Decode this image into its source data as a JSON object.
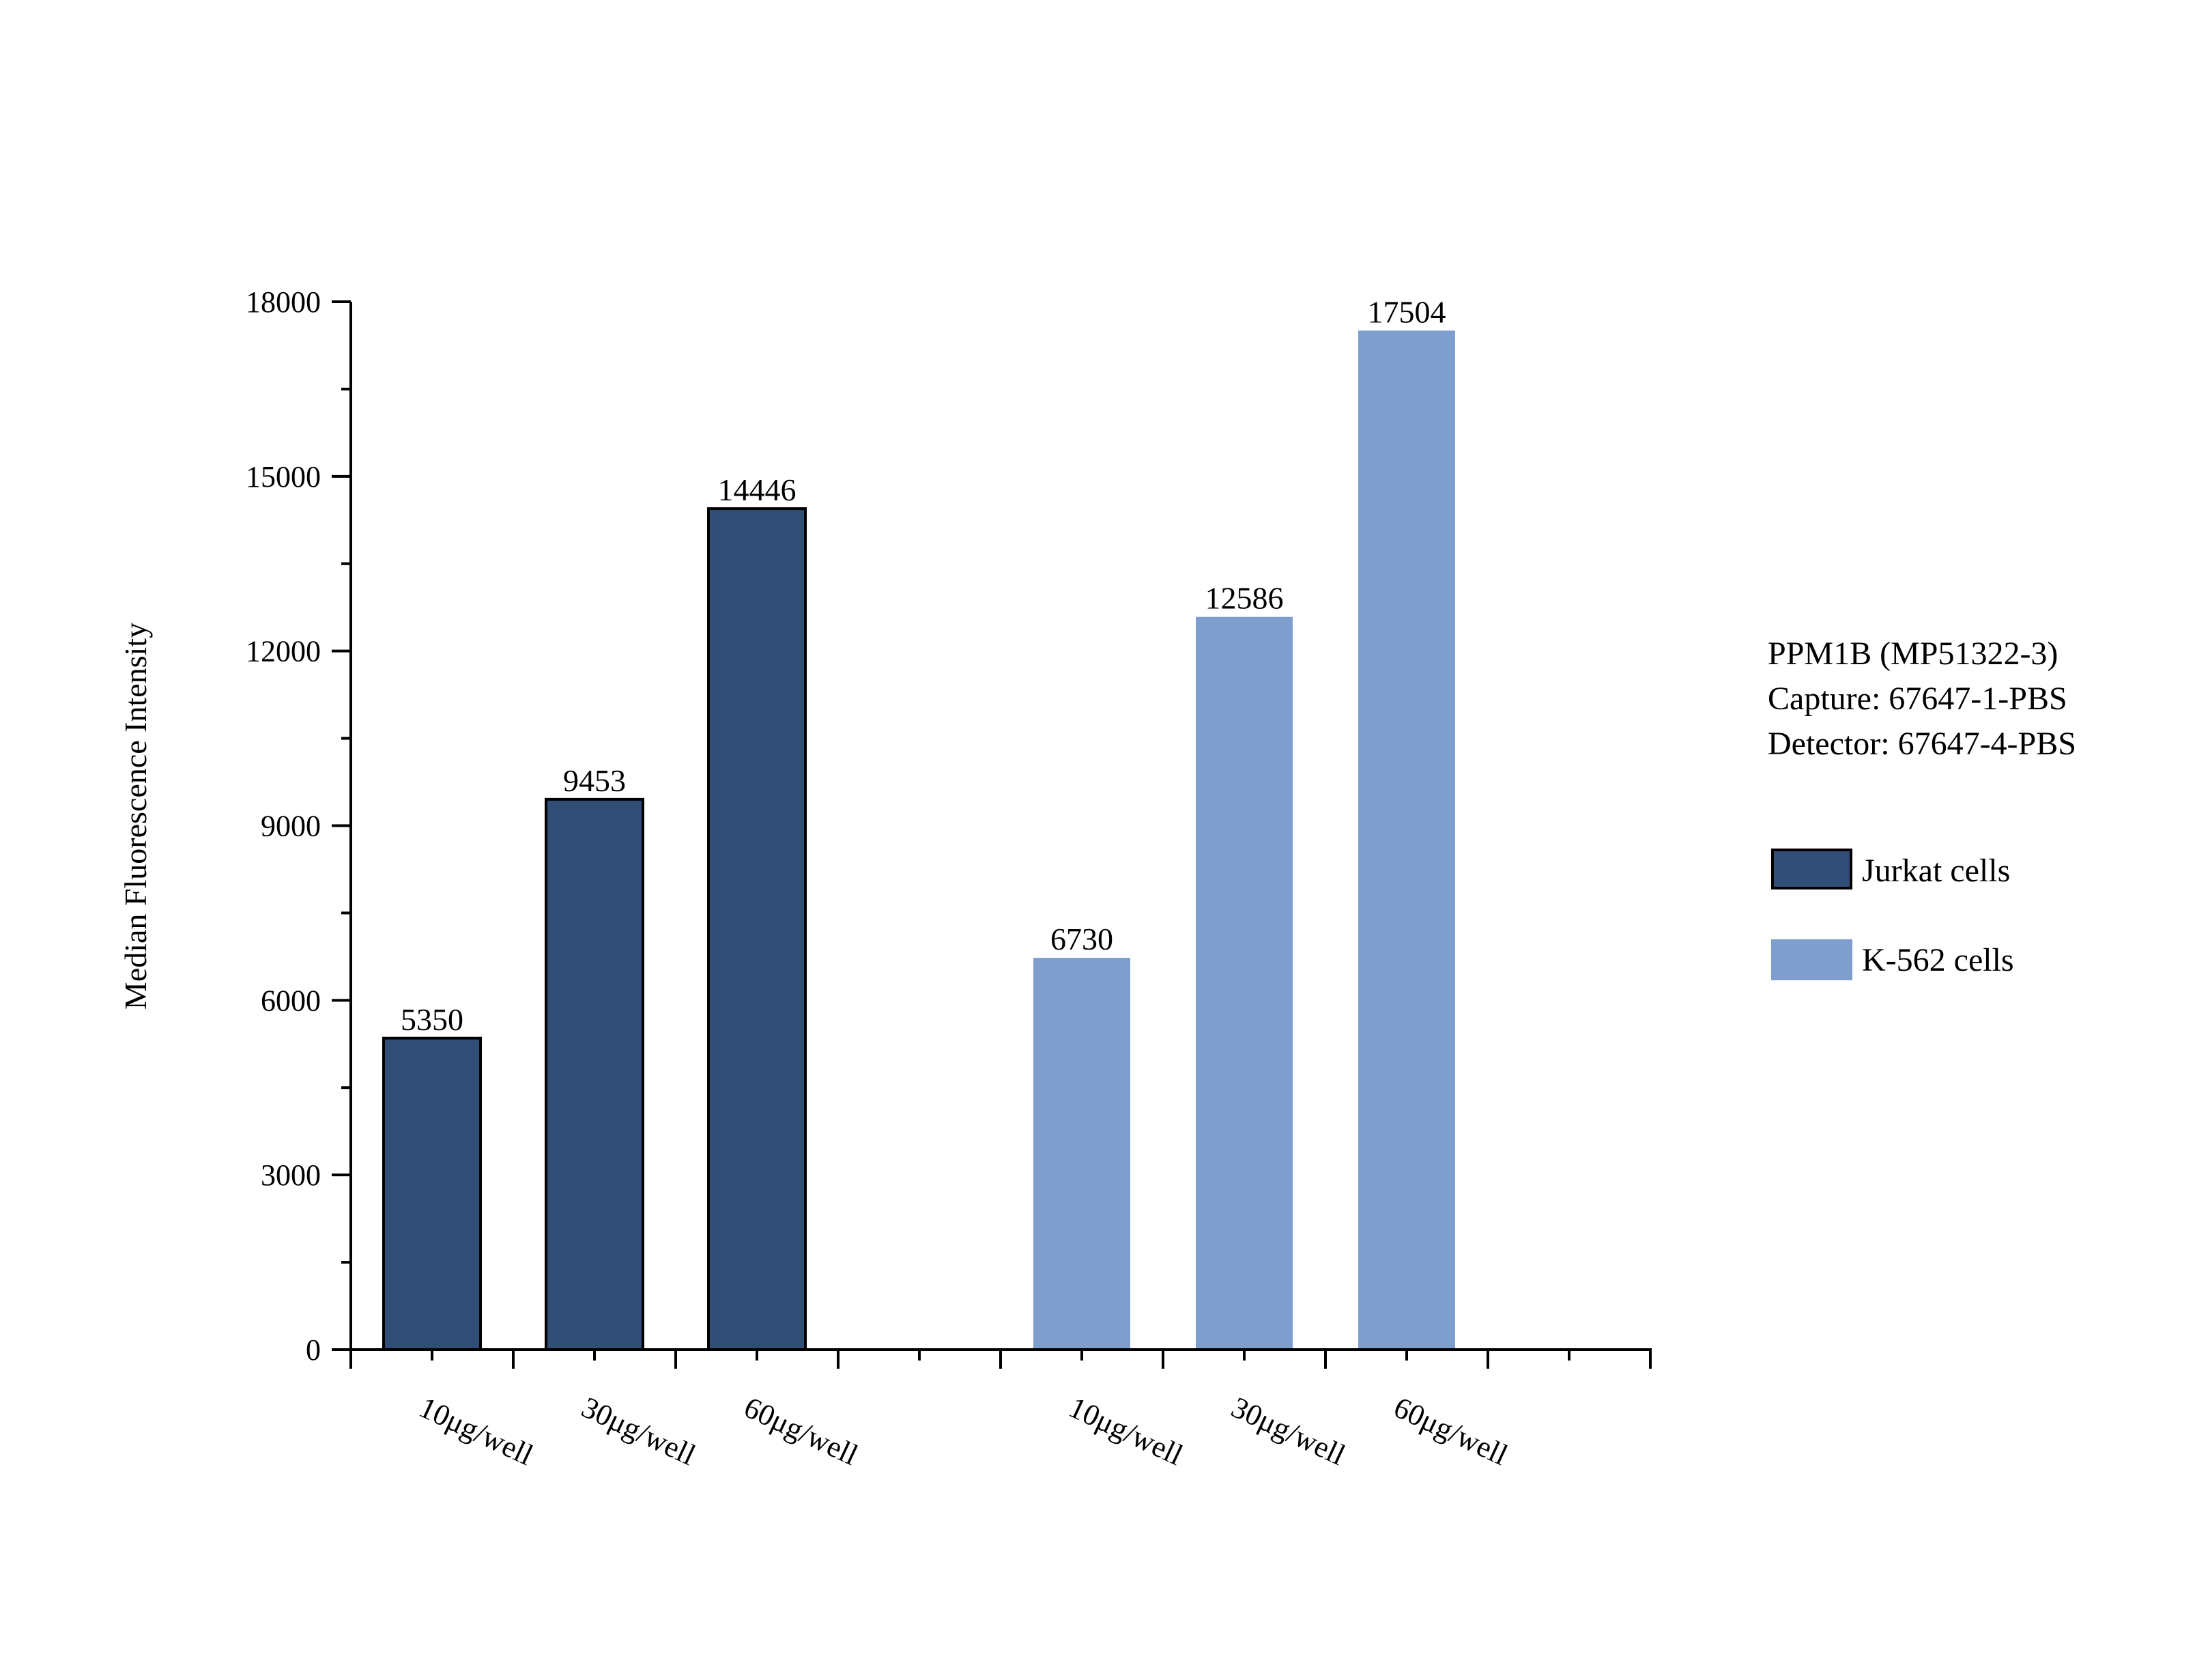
{
  "chart_data": {
    "type": "bar",
    "ylabel": "Median Fluorescence Intensity",
    "xlabel": "",
    "ylim": [
      0,
      18000
    ],
    "yticks": [
      0,
      3000,
      6000,
      9000,
      12000,
      15000,
      18000
    ],
    "grid": false,
    "legend_position": "right",
    "series": [
      {
        "name": "Jurkat cells",
        "color": "#314e77",
        "categories": [
          "10μg/well",
          "30μg/well",
          "60μg/well"
        ],
        "values": [
          5350,
          9453,
          14446
        ]
      },
      {
        "name": "K-562 cells",
        "color": "#7e9fcd",
        "categories": [
          "10μg/well",
          "30μg/well",
          "60μg/well"
        ],
        "values": [
          6730,
          12586,
          17504
        ]
      }
    ],
    "annotation": {
      "lines": [
        "PPM1B (MP51322-3)",
        "Capture: 67647-1-PBS",
        "Detector: 67647-4-PBS"
      ]
    }
  }
}
